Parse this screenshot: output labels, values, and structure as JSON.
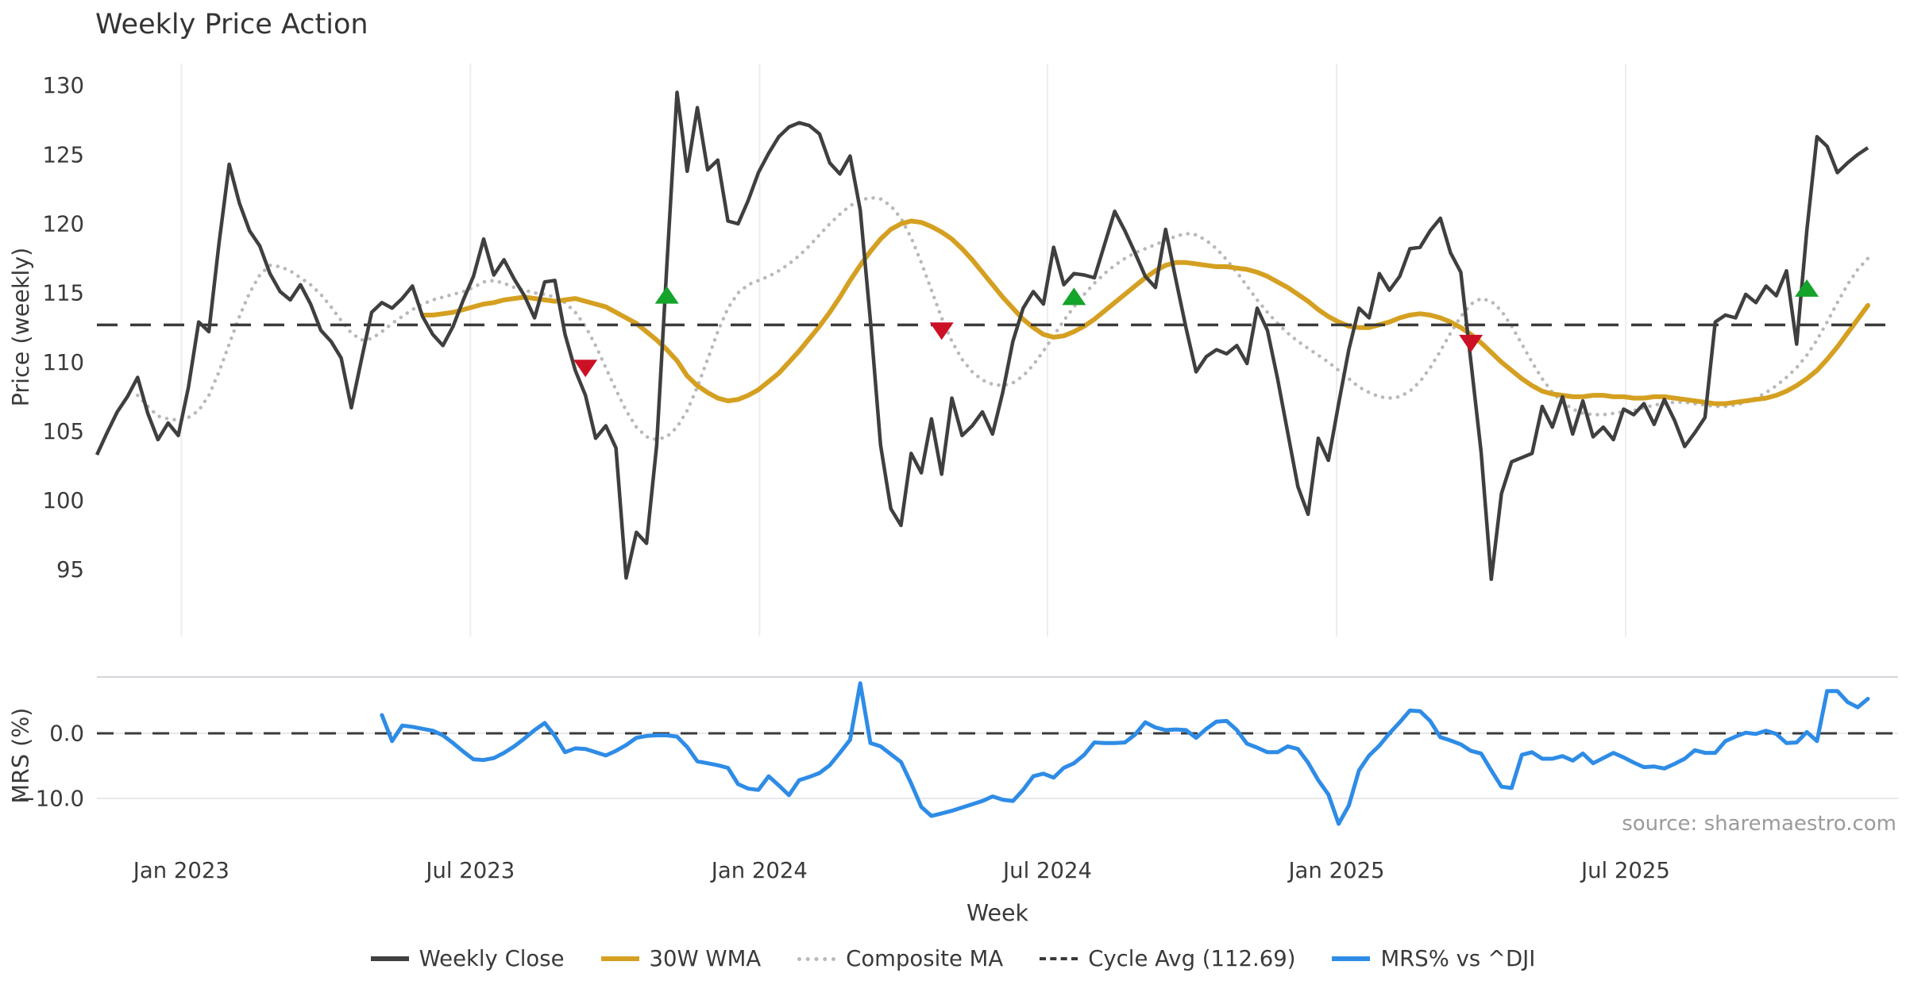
{
  "title": "Weekly Price Action",
  "source": "source: sharemaestro.com",
  "axes": {
    "x_label": "Week",
    "y1_label": "Price (weekly)",
    "y2_label": "MRS (%)",
    "x_tick_labels": [
      "Jan 2023",
      "Jul 2023",
      "Jan 2024",
      "Jul 2024",
      "Jan 2025",
      "Jul 2025"
    ],
    "y1_tick_labels": [
      "130",
      "125",
      "120",
      "115",
      "110",
      "105",
      "100",
      "95"
    ],
    "y2_tick_labels": [
      "0.0",
      "−10.0"
    ]
  },
  "colors": {
    "close": "#3f3f3f",
    "wma": "#d5a021",
    "composite": "#b9b9b9",
    "cycle": "#3a3a3a",
    "mrs": "#2e8ce6",
    "buy": "#14a32b",
    "sell": "#cc1126",
    "grid": "#ededf3",
    "panel_spine": "#c9c9cf",
    "light_grid": "#e8e8ec"
  },
  "chart_data": {
    "type": "line",
    "weeks": 175,
    "x_range_note": "weekly points, Nov 2022 through Nov 2025",
    "x_tick_weeks": [
      8.3,
      36.7,
      65.1,
      93.4,
      121.8,
      150.2
    ],
    "cycle_avg": 112.69,
    "panels": [
      {
        "id": "price",
        "ylabel": "Price (weekly)",
        "ylim": [
          92.5,
          131.5
        ],
        "yticks": [
          130,
          125,
          120,
          115,
          110,
          105,
          100,
          95
        ]
      },
      {
        "id": "mrs",
        "ylabel": "MRS (%)",
        "ylim": [
          -16,
          9
        ],
        "yticks": [
          0.0,
          -10.0
        ]
      }
    ],
    "series": [
      {
        "name": "Weekly Close",
        "panel": "price",
        "style": "solid",
        "color_key": "close",
        "width": 4.5,
        "values": [
          103.3,
          104.9,
          106.4,
          107.5,
          108.9,
          106.3,
          104.4,
          105.6,
          104.7,
          108.2,
          112.9,
          112.2,
          118.6,
          124.3,
          121.5,
          119.5,
          118.4,
          116.4,
          115.1,
          114.5,
          115.6,
          114.2,
          112.3,
          111.5,
          110.3,
          106.7,
          110.2,
          113.6,
          114.3,
          113.9,
          114.6,
          115.5,
          113.3,
          112.0,
          111.2,
          112.6,
          114.5,
          116.2,
          118.9,
          116.3,
          117.4,
          116.0,
          114.8,
          113.2,
          115.8,
          115.9,
          112.0,
          109.4,
          107.6,
          104.5,
          105.4,
          103.8,
          94.4,
          97.7,
          96.9,
          104.0,
          117.0,
          129.5,
          123.8,
          128.4,
          123.9,
          124.6,
          120.2,
          120.0,
          121.7,
          123.7,
          125.1,
          126.3,
          127.0,
          127.3,
          127.1,
          126.5,
          124.4,
          123.6,
          124.9,
          121.0,
          113.0,
          104.0,
          99.4,
          98.2,
          103.4,
          102.0,
          105.9,
          101.9,
          107.4,
          104.7,
          105.4,
          106.4,
          104.8,
          107.8,
          111.5,
          113.9,
          115.1,
          114.2,
          118.3,
          115.6,
          116.4,
          116.3,
          116.1,
          118.5,
          120.9,
          119.5,
          117.9,
          116.2,
          115.4,
          119.6,
          116.0,
          112.5,
          109.3,
          110.4,
          110.9,
          110.6,
          111.2,
          109.9,
          113.9,
          112.3,
          108.8,
          104.9,
          101.0,
          99.0,
          104.5,
          102.9,
          107.0,
          110.9,
          113.9,
          113.2,
          116.4,
          115.2,
          116.2,
          118.2,
          118.3,
          119.5,
          120.4,
          117.9,
          116.5,
          110.0,
          103.5,
          94.3,
          100.5,
          102.8,
          103.1,
          103.4,
          106.8,
          105.3,
          107.5,
          104.8,
          107.2,
          104.6,
          105.3,
          104.4,
          106.6,
          106.2,
          107.0,
          105.5,
          107.3,
          105.8,
          103.9,
          104.9,
          106.0,
          112.9,
          113.4,
          113.2,
          114.9,
          114.3,
          115.5,
          114.8,
          116.6,
          111.3,
          119.5,
          126.3,
          125.6,
          123.7,
          124.4,
          125.0,
          125.5
        ]
      },
      {
        "name": "30W WMA",
        "panel": "price",
        "style": "solid",
        "color_key": "wma",
        "width": 6,
        "values": [
          null,
          null,
          null,
          null,
          null,
          null,
          null,
          null,
          null,
          null,
          null,
          null,
          null,
          null,
          null,
          null,
          null,
          null,
          null,
          null,
          null,
          null,
          null,
          null,
          null,
          null,
          null,
          null,
          null,
          null,
          null,
          null,
          113.4,
          113.4,
          113.5,
          113.6,
          113.8,
          114.0,
          114.2,
          114.3,
          114.5,
          114.6,
          114.7,
          114.6,
          114.5,
          114.4,
          114.5,
          114.6,
          114.4,
          114.2,
          114.0,
          113.6,
          113.2,
          112.8,
          112.2,
          111.6,
          110.9,
          110.1,
          109.0,
          108.3,
          107.8,
          107.4,
          107.2,
          107.3,
          107.6,
          108.0,
          108.6,
          109.2,
          110.0,
          110.8,
          111.7,
          112.6,
          113.6,
          114.7,
          115.9,
          117.0,
          118.0,
          118.9,
          119.6,
          120.0,
          120.2,
          120.1,
          119.8,
          119.4,
          118.9,
          118.2,
          117.4,
          116.5,
          115.6,
          114.7,
          113.9,
          113.1,
          112.5,
          112.0,
          111.8,
          111.9,
          112.2,
          112.6,
          113.1,
          113.7,
          114.3,
          114.9,
          115.5,
          116.1,
          116.6,
          117.0,
          117.2,
          117.2,
          117.1,
          117.0,
          116.9,
          116.9,
          116.8,
          116.7,
          116.5,
          116.2,
          115.8,
          115.4,
          114.9,
          114.4,
          113.8,
          113.3,
          112.9,
          112.6,
          112.5,
          112.5,
          112.7,
          112.9,
          113.2,
          113.4,
          113.5,
          113.4,
          113.2,
          112.9,
          112.5,
          112.0,
          111.4,
          110.7,
          110.0,
          109.4,
          108.8,
          108.3,
          107.9,
          107.7,
          107.6,
          107.5,
          107.5,
          107.6,
          107.6,
          107.5,
          107.5,
          107.4,
          107.4,
          107.5,
          107.5,
          107.4,
          107.3,
          107.2,
          107.1,
          107.0,
          107.0,
          107.1,
          107.2,
          107.3,
          107.4,
          107.6,
          107.9,
          108.3,
          108.8,
          109.4,
          110.2,
          111.1,
          112.1,
          113.1,
          114.1
        ]
      },
      {
        "name": "Composite MA",
        "panel": "price",
        "style": "dotted",
        "color_key": "composite",
        "width": 4.5,
        "values": [
          null,
          null,
          null,
          null,
          107.6,
          106.8,
          106.1,
          105.9,
          105.8,
          106.0,
          106.5,
          107.6,
          109.3,
          111.3,
          113.3,
          115.0,
          116.3,
          117.0,
          116.9,
          116.6,
          116.1,
          115.6,
          114.9,
          114.0,
          113.0,
          112.1,
          111.6,
          111.7,
          112.2,
          112.8,
          113.3,
          113.8,
          114.2,
          114.5,
          114.7,
          114.9,
          115.1,
          115.4,
          115.8,
          115.9,
          115.7,
          115.4,
          115.2,
          115.0,
          114.9,
          114.7,
          114.3,
          113.6,
          112.6,
          111.2,
          109.6,
          108.0,
          106.5,
          105.3,
          104.6,
          104.4,
          104.6,
          105.3,
          106.5,
          108.2,
          110.2,
          112.2,
          113.9,
          115.0,
          115.6,
          115.9,
          116.2,
          116.6,
          117.1,
          117.7,
          118.4,
          119.2,
          120.0,
          120.7,
          121.3,
          121.7,
          121.9,
          121.8,
          121.3,
          120.4,
          119.0,
          117.2,
          115.2,
          113.2,
          111.5,
          110.2,
          109.3,
          108.7,
          108.4,
          108.3,
          108.5,
          109.0,
          109.8,
          110.8,
          111.9,
          113.0,
          114.0,
          114.9,
          115.7,
          116.4,
          117.0,
          117.5,
          117.9,
          118.2,
          118.5,
          118.8,
          119.1,
          119.3,
          119.2,
          118.8,
          118.2,
          117.4,
          116.5,
          115.5,
          114.5,
          113.6,
          112.8,
          112.1,
          111.5,
          111.0,
          110.5,
          110.0,
          109.4,
          108.8,
          108.2,
          107.8,
          107.5,
          107.4,
          107.5,
          107.9,
          108.6,
          109.6,
          110.8,
          112.1,
          113.3,
          114.2,
          114.6,
          114.4,
          113.7,
          112.6,
          111.3,
          110.0,
          108.8,
          107.8,
          107.1,
          106.6,
          106.3,
          106.2,
          106.2,
          106.3,
          106.4,
          106.5,
          106.7,
          106.9,
          107.0,
          107.1,
          107.1,
          107.0,
          106.9,
          106.8,
          106.8,
          106.9,
          107.1,
          107.4,
          107.8,
          108.3,
          108.9,
          109.6,
          110.5,
          111.6,
          112.9,
          114.3,
          115.6,
          116.7,
          117.5
        ]
      },
      {
        "name": "Cycle Avg (112.69)",
        "panel": "price",
        "style": "dashed",
        "color_key": "cycle",
        "width": 3.5,
        "value": 112.69
      },
      {
        "name": "MRS% vs ^DJI",
        "panel": "mrs",
        "style": "solid",
        "color_key": "mrs",
        "width": 5,
        "values": [
          null,
          null,
          null,
          null,
          null,
          null,
          null,
          null,
          null,
          null,
          null,
          null,
          null,
          null,
          null,
          null,
          null,
          null,
          null,
          null,
          null,
          null,
          null,
          null,
          null,
          null,
          null,
          null,
          2.8,
          -1.2,
          1.2,
          1.0,
          0.7,
          0.4,
          -0.3,
          -1.5,
          -2.8,
          -4.0,
          -4.1,
          -3.8,
          -3.0,
          -2.0,
          -0.8,
          0.5,
          1.6,
          -0.4,
          -2.9,
          -2.3,
          -2.4,
          -2.9,
          -3.4,
          -2.7,
          -1.8,
          -0.7,
          -0.4,
          -0.3,
          -0.3,
          -0.5,
          -2.1,
          -4.3,
          -4.6,
          -4.9,
          -5.3,
          -7.8,
          -8.5,
          -8.7,
          -6.6,
          -8.0,
          -9.5,
          -7.2,
          -6.7,
          -6.1,
          -4.9,
          -3.0,
          -1.0,
          7.7,
          -1.5,
          -2.0,
          -3.2,
          -4.4,
          -7.7,
          -11.3,
          -12.7,
          -12.3,
          -11.9,
          -11.4,
          -10.9,
          -10.4,
          -9.7,
          -10.2,
          -10.4,
          -8.7,
          -6.6,
          -6.2,
          -6.8,
          -5.3,
          -4.6,
          -3.3,
          -1.4,
          -1.5,
          -1.5,
          -1.4,
          -0.2,
          1.7,
          0.9,
          0.5,
          0.6,
          0.5,
          -0.7,
          0.7,
          1.8,
          1.9,
          0.5,
          -1.6,
          -2.2,
          -2.9,
          -2.9,
          -2.0,
          -2.4,
          -4.5,
          -7.2,
          -9.4,
          -13.9,
          -11.1,
          -5.7,
          -3.4,
          -1.9,
          0.0,
          1.7,
          3.5,
          3.4,
          1.9,
          -0.6,
          -1.1,
          -1.7,
          -2.7,
          -3.1,
          -5.7,
          -8.2,
          -8.4,
          -3.3,
          -2.9,
          -3.9,
          -3.9,
          -3.5,
          -4.2,
          -3.1,
          -4.6,
          -3.8,
          -3.0,
          -3.7,
          -4.5,
          -5.2,
          -5.1,
          -5.4,
          -4.7,
          -3.9,
          -2.6,
          -3.0,
          -3.0,
          -1.2,
          -0.5,
          0.1,
          -0.1,
          0.4,
          -0.1,
          -1.5,
          -1.4,
          0.2,
          -1.2,
          6.5,
          6.5,
          4.8,
          4.0,
          5.3
        ]
      }
    ],
    "markers": [
      {
        "signal": "sell",
        "week": 48,
        "price": 109.6
      },
      {
        "signal": "buy",
        "week": 56,
        "price": 114.8
      },
      {
        "signal": "sell",
        "week": 83,
        "price": 112.3
      },
      {
        "signal": "buy",
        "week": 96,
        "price": 114.7
      },
      {
        "signal": "sell",
        "week": 135,
        "price": 111.4
      },
      {
        "signal": "buy",
        "week": 168,
        "price": 115.3
      }
    ],
    "legend_position": "bottom-center",
    "grid": "vertical-only-top-panel"
  }
}
